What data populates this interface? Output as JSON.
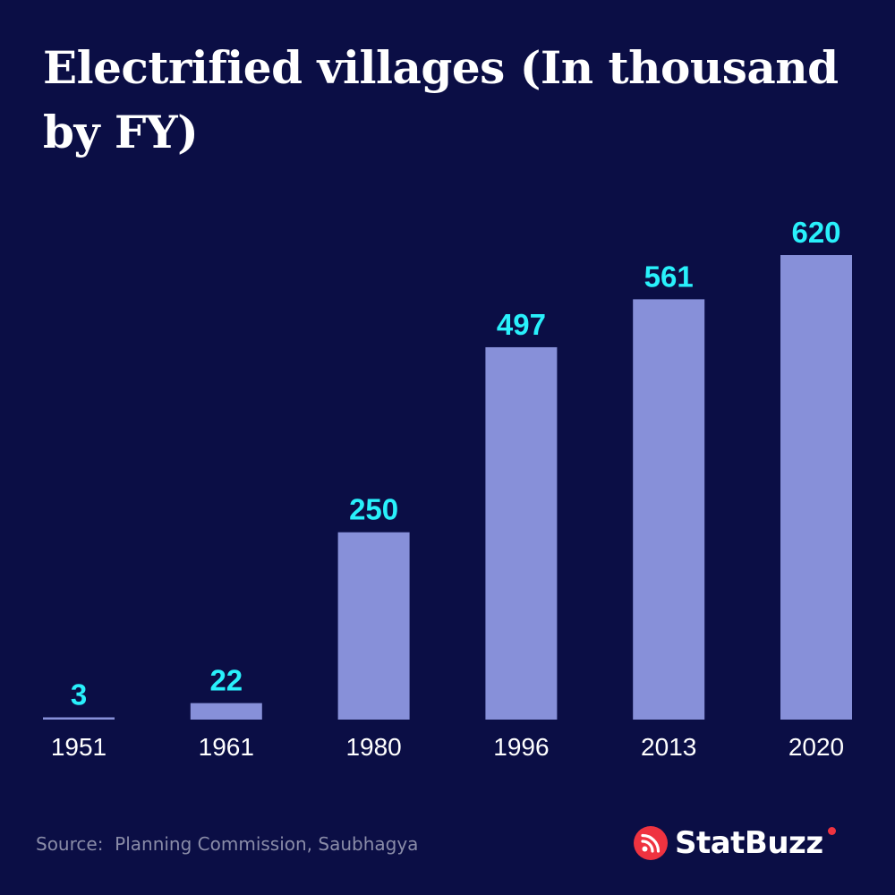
{
  "title": "Electrified villages (In thousand by FY)",
  "chart_data": {
    "type": "bar",
    "title": "Electrified villages (In thousand by FY)",
    "xlabel": "",
    "ylabel": "",
    "categories": [
      "1951",
      "1961",
      "1980",
      "1996",
      "2013",
      "2020"
    ],
    "values": [
      3,
      22,
      250,
      497,
      561,
      620
    ],
    "value_labels": [
      "3",
      "22",
      "250",
      "497",
      "561",
      "620"
    ],
    "ylim": [
      0,
      620
    ],
    "grid": false,
    "legend": "none",
    "bar_color": "#8790d9",
    "value_label_color": "#29f0fb"
  },
  "source": "Source:  Planning Commission, Saubhagya",
  "brand": {
    "name": "StatBuzz",
    "icon": "rss-broadcast-icon",
    "icon_color": "#ef3340"
  },
  "colors": {
    "background": "#0b0e45",
    "text": "#ffffff",
    "source_text": "#8a8ca8"
  }
}
